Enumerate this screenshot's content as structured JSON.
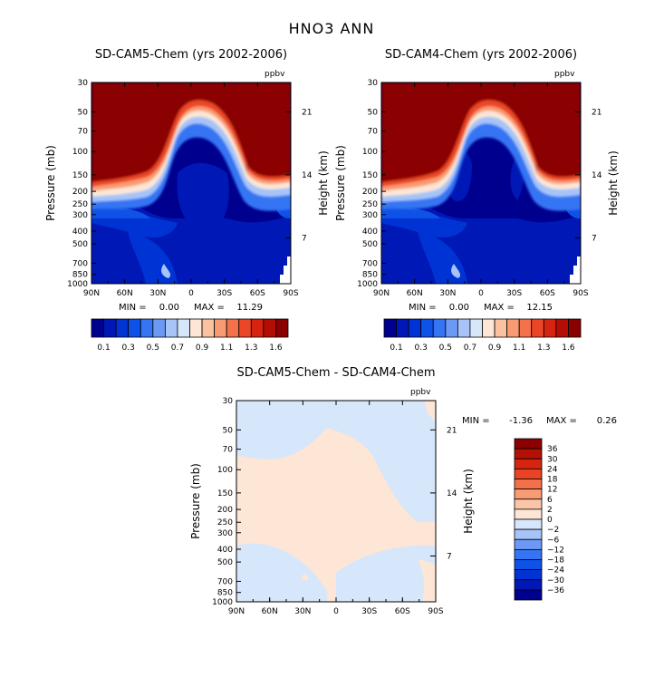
{
  "figure": {
    "title": "HNO3 ANN"
  },
  "chart_data": [
    {
      "type": "heatmap",
      "title": "SD-CAM5-Chem (yrs 2002-2006)",
      "units": "ppbv",
      "ylabel": "Pressure (mb)",
      "ylabel_right": "Height (km)",
      "xlabel": "",
      "x_ticks": [
        "90N",
        "60N",
        "30N",
        "0",
        "30S",
        "60S",
        "90S"
      ],
      "y_ticks": [
        "30",
        "50",
        "70",
        "100",
        "150",
        "200",
        "250",
        "300",
        "400",
        "500",
        "700",
        "850",
        "1000"
      ],
      "y_right_ticks": [
        "21",
        "14",
        "7"
      ],
      "stats": {
        "min_label": "MIN =",
        "min": "0.00",
        "max_label": "MAX =",
        "max": "11.29"
      },
      "colorbar": {
        "labels": [
          "0.1",
          "0.3",
          "0.5",
          "0.7",
          "0.9",
          "1.1",
          "1.3",
          "1.6"
        ],
        "colors": [
          "#00008f",
          "#0018b5",
          "#0033d4",
          "#0f52e8",
          "#3575f3",
          "#6d99f6",
          "#a6c4f8",
          "#d6e6fb",
          "#fde6d6",
          "#fbc2a2",
          "#f99b72",
          "#f5714a",
          "#eb4626",
          "#d62410",
          "#b30d05",
          "#8b0000"
        ]
      }
    },
    {
      "type": "heatmap",
      "title": "SD-CAM4-Chem (yrs 2002-2006)",
      "units": "ppbv",
      "ylabel": "Pressure (mb)",
      "ylabel_right": "Height (km)",
      "xlabel": "",
      "x_ticks": [
        "90N",
        "60N",
        "30N",
        "0",
        "30S",
        "60S",
        "90S"
      ],
      "y_ticks": [
        "30",
        "50",
        "70",
        "100",
        "150",
        "200",
        "250",
        "300",
        "400",
        "500",
        "700",
        "850",
        "1000"
      ],
      "y_right_ticks": [
        "21",
        "14",
        "7"
      ],
      "stats": {
        "min_label": "MIN =",
        "min": "0.00",
        "max_label": "MAX =",
        "max": "12.15"
      },
      "colorbar": {
        "labels": [
          "0.1",
          "0.3",
          "0.5",
          "0.7",
          "0.9",
          "1.1",
          "1.3",
          "1.6"
        ],
        "colors": [
          "#00008f",
          "#0018b5",
          "#0033d4",
          "#0f52e8",
          "#3575f3",
          "#6d99f6",
          "#a6c4f8",
          "#d6e6fb",
          "#fde6d6",
          "#fbc2a2",
          "#f99b72",
          "#f5714a",
          "#eb4626",
          "#d62410",
          "#b30d05",
          "#8b0000"
        ]
      }
    },
    {
      "type": "heatmap",
      "title": "SD-CAM5-Chem - SD-CAM4-Chem",
      "units": "ppbv",
      "ylabel": "Pressure (mb)",
      "ylabel_right": "Height (km)",
      "xlabel": "",
      "x_ticks": [
        "90N",
        "60N",
        "30N",
        "0",
        "30S",
        "60S",
        "90S"
      ],
      "y_ticks": [
        "30",
        "50",
        "70",
        "100",
        "150",
        "200",
        "250",
        "300",
        "400",
        "500",
        "700",
        "850",
        "1000"
      ],
      "y_right_ticks": [
        "21",
        "14",
        "7"
      ],
      "stats": {
        "min_label": "MIN =",
        "min": "-1.36",
        "max_label": "MAX =",
        "max": "0.26"
      },
      "colorbar": {
        "labels": [
          "36",
          "30",
          "24",
          "18",
          "12",
          "6",
          "2",
          "0",
          "-2",
          "-6",
          "-12",
          "-18",
          "-24",
          "-30",
          "-36"
        ],
        "colors": [
          "#8b0000",
          "#b31105",
          "#d52510",
          "#ea4424",
          "#f4704a",
          "#f99c74",
          "#fbc6a8",
          "#fde6d6",
          "#d6e6fb",
          "#a6c4f8",
          "#6d99f6",
          "#3575f3",
          "#0f52e8",
          "#0033d4",
          "#0018b5",
          "#00008f"
        ]
      }
    }
  ]
}
